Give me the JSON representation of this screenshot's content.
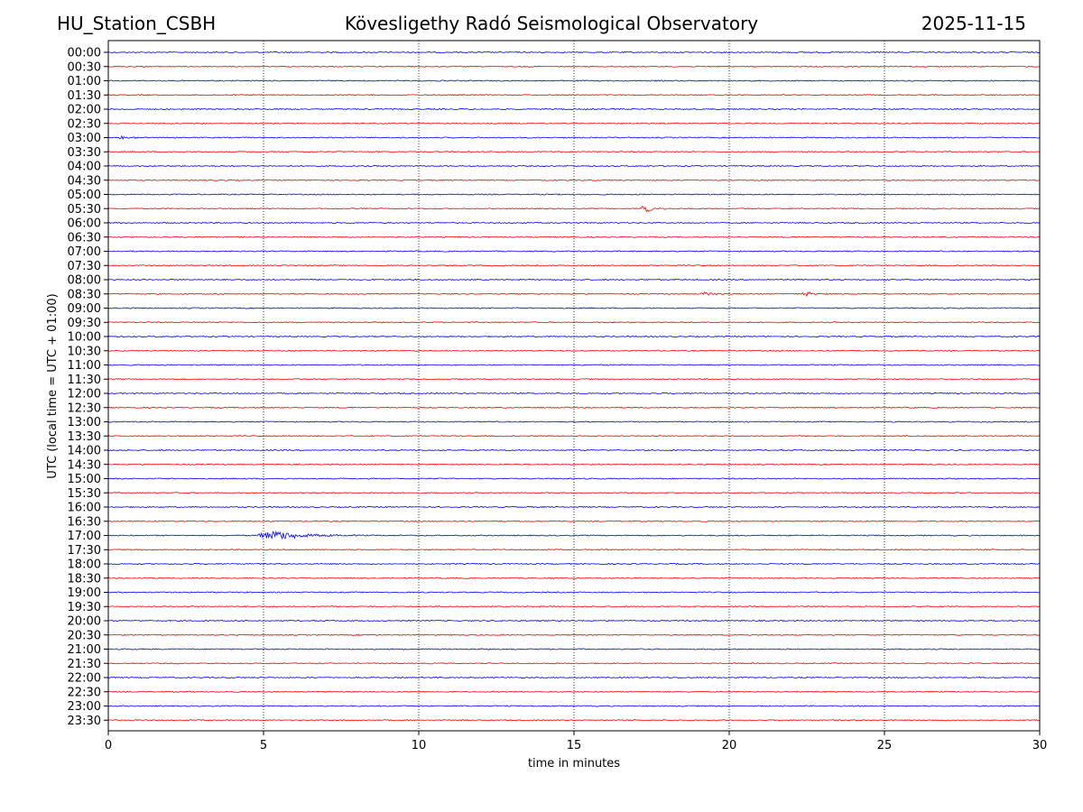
{
  "header": {
    "station": "HU_Station_CSBH",
    "title": "Kövesligethy Radó Seismological Observatory",
    "date": "2025-11-15"
  },
  "chart_data": {
    "type": "line",
    "xlabel": "time in minutes",
    "ylabel": "UTC (local time = UTC + 01:00)",
    "xlim": [
      0,
      30
    ],
    "xticks": [
      "0",
      "5",
      "10",
      "15",
      "20",
      "25",
      "30"
    ],
    "grid": "vertical dotted lines at x ticks",
    "trace_colors": [
      "#0000ff",
      "#ff0000"
    ],
    "rows": [
      "00:00",
      "00:30",
      "01:00",
      "01:30",
      "02:00",
      "02:30",
      "03:00",
      "03:30",
      "04:00",
      "04:30",
      "05:00",
      "05:30",
      "06:00",
      "06:30",
      "07:00",
      "07:30",
      "08:00",
      "08:30",
      "09:00",
      "09:30",
      "10:00",
      "10:30",
      "11:00",
      "11:30",
      "12:00",
      "12:30",
      "13:00",
      "13:30",
      "14:00",
      "14:30",
      "15:00",
      "15:30",
      "16:00",
      "16:30",
      "17:00",
      "17:30",
      "18:00",
      "18:30",
      "19:00",
      "19:30",
      "20:00",
      "20:30",
      "21:00",
      "21:30",
      "22:00",
      "22:30",
      "23:00",
      "23:30"
    ],
    "events": [
      {
        "row": "03:00",
        "start": 0.3,
        "duration": 0.8,
        "amplitude": 2.2
      },
      {
        "row": "05:30",
        "start": 17.1,
        "duration": 0.9,
        "amplitude": 6
      },
      {
        "row": "08:30",
        "start": 19.0,
        "duration": 1.5,
        "amplitude": 2.2
      },
      {
        "row": "08:30",
        "start": 22.3,
        "duration": 1.2,
        "amplitude": 2.6
      },
      {
        "row": "17:00",
        "start": 4.7,
        "duration": 3.5,
        "amplitude": 6
      }
    ]
  }
}
